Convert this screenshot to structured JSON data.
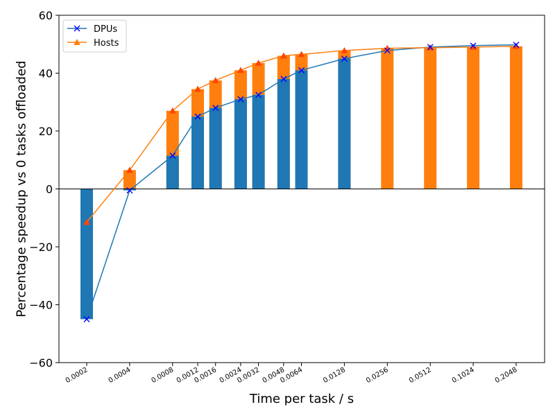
{
  "chart_data": {
    "type": "bar",
    "xlabel": "Time per task / s",
    "ylabel": "Percentage speedup vs 0 tasks offloaded",
    "x_scale": "log2",
    "ylim": [
      -60,
      60
    ],
    "yticks": [
      -60,
      -40,
      -20,
      0,
      20,
      40,
      60
    ],
    "x": [
      0.0002,
      0.0004,
      0.0008,
      0.0012,
      0.0016,
      0.0024,
      0.0032,
      0.0048,
      0.0064,
      0.0128,
      0.0256,
      0.0512,
      0.1024,
      0.2048
    ],
    "tick_labels": [
      "0.0002",
      "0.0004",
      "0.0008",
      "0.0012",
      "0.0016",
      "0.0024",
      "0.0032",
      "0.0048",
      "0.0064",
      "0.0128",
      "0.0256",
      "0.0512",
      "0.1024",
      "0.2048"
    ],
    "legend_position": "top-left",
    "series": [
      {
        "name": "DPUs",
        "marker": "x",
        "color": "#1f77b4",
        "marker_color": "#0000ff",
        "values": [
          -45,
          -0.5,
          11.5,
          25,
          28,
          31,
          32.5,
          38,
          41,
          45,
          47.8,
          49,
          49.5,
          49.8
        ]
      },
      {
        "name": "Hosts",
        "marker": "triangle",
        "color": "#ff7f0e",
        "marker_color": "#ff4500",
        "values": [
          -11.5,
          6.5,
          27,
          34.5,
          37.5,
          41,
          43.5,
          46,
          46.5,
          47.8,
          48.6,
          48.8,
          49,
          49.3
        ]
      }
    ],
    "bars": {
      "dpu_bar_values": [
        -45,
        -0.5,
        11.5,
        25,
        28,
        31,
        32.5,
        38,
        41,
        45,
        0,
        0,
        0,
        0
      ],
      "host_bar_values": [
        -11.5,
        6.5,
        27,
        34.5,
        37.5,
        41,
        43.5,
        46,
        46.5,
        47.8,
        48.6,
        48.8,
        49,
        49.3
      ]
    }
  }
}
